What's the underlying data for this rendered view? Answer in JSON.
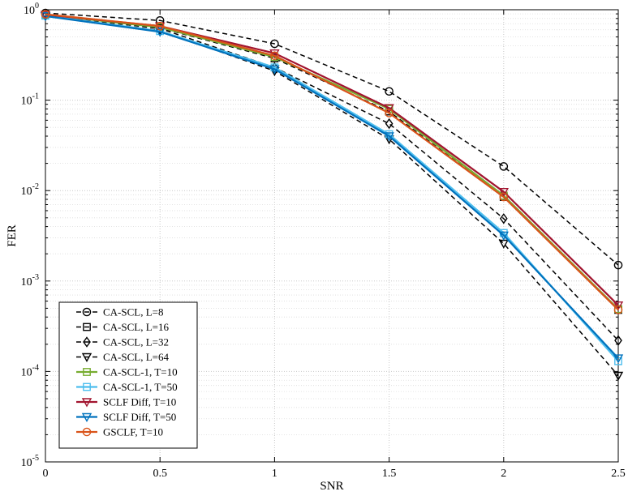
{
  "chart_data": {
    "type": "line",
    "title": "",
    "xlabel": "SNR",
    "ylabel": "FER",
    "xlim": [
      0,
      2.5
    ],
    "ylim": [
      1e-05,
      1
    ],
    "yscale": "log",
    "grid": true,
    "x_ticks": [
      0,
      0.5,
      1,
      1.5,
      2,
      2.5
    ],
    "x_tick_labels": [
      "0",
      "0.5",
      "1",
      "1.5",
      "2",
      "2.5"
    ],
    "y_ticks": [
      {
        "base": "10",
        "exp": "0",
        "value": 1
      },
      {
        "base": "10",
        "exp": "-1",
        "value": 0.1
      },
      {
        "base": "10",
        "exp": "-2",
        "value": 0.01
      },
      {
        "base": "10",
        "exp": "-3",
        "value": 0.001
      },
      {
        "base": "10",
        "exp": "-4",
        "value": 0.0001
      },
      {
        "base": "10",
        "exp": "-5",
        "value": 1e-05
      }
    ],
    "legend_position": "bottom-left",
    "x": [
      0,
      0.5,
      1,
      1.5,
      2,
      2.5
    ],
    "series": [
      {
        "name": "CA-SCL, L=8",
        "color": "#000000",
        "dash": true,
        "marker": "circle",
        "values": [
          0.92,
          0.76,
          0.42,
          0.125,
          0.0185,
          0.0015
        ]
      },
      {
        "name": "CA-SCL, L=16",
        "color": "#000000",
        "dash": true,
        "marker": "square",
        "values": [
          0.88,
          0.63,
          0.29,
          0.075,
          0.0085,
          0.00048
        ]
      },
      {
        "name": "CA-SCL, L=32",
        "color": "#000000",
        "dash": true,
        "marker": "diamond",
        "values": [
          0.86,
          0.62,
          0.23,
          0.055,
          0.0049,
          0.00022
        ]
      },
      {
        "name": "CA-SCL, L=64",
        "color": "#000000",
        "dash": true,
        "marker": "triangle-down",
        "values": [
          0.85,
          0.59,
          0.21,
          0.037,
          0.0026,
          9e-05
        ]
      },
      {
        "name": "CA-SCL-1, T=10",
        "color": "#77AC30",
        "dash": false,
        "marker": "square",
        "values": [
          0.88,
          0.64,
          0.3,
          0.08,
          0.0088,
          0.00049
        ]
      },
      {
        "name": "CA-SCL-1, T=50",
        "color": "#4DBEEE",
        "dash": false,
        "marker": "square",
        "values": [
          0.86,
          0.58,
          0.23,
          0.042,
          0.0034,
          0.00013
        ]
      },
      {
        "name": "SCLF Diff, T=10",
        "color": "#A2142F",
        "dash": false,
        "marker": "triangle-down",
        "values": [
          0.88,
          0.66,
          0.33,
          0.082,
          0.0097,
          0.00054
        ]
      },
      {
        "name": "SCLF Diff, T=50",
        "color": "#0072BD",
        "dash": false,
        "marker": "triangle-down",
        "values": [
          0.85,
          0.57,
          0.22,
          0.04,
          0.0032,
          0.00014
        ]
      },
      {
        "name": "GSCLF, T=10",
        "color": "#D95319",
        "dash": false,
        "marker": "circle",
        "values": [
          0.89,
          0.66,
          0.31,
          0.072,
          0.0085,
          0.00048
        ]
      }
    ]
  }
}
